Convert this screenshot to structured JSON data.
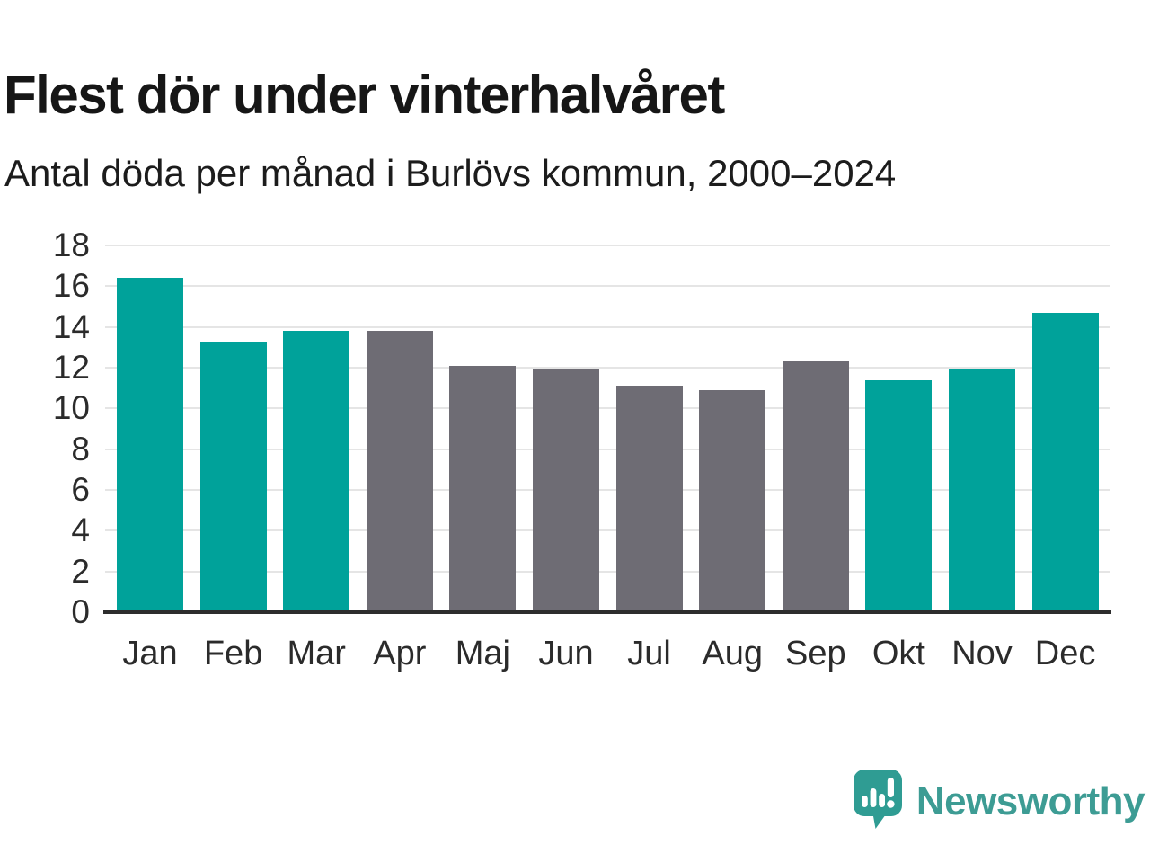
{
  "chart_data": {
    "type": "bar",
    "title": "Flest dör under vinterhalvåret",
    "subtitle": "Antal döda per månad i Burlövs kommun, 2000–2024",
    "categories": [
      "Jan",
      "Feb",
      "Mar",
      "Apr",
      "Maj",
      "Jun",
      "Jul",
      "Aug",
      "Sep",
      "Okt",
      "Nov",
      "Dec"
    ],
    "values": [
      16.4,
      13.3,
      13.8,
      13.8,
      12.1,
      11.9,
      11.1,
      10.9,
      12.3,
      11.4,
      11.9,
      14.7
    ],
    "highlighted": [
      true,
      true,
      true,
      false,
      false,
      false,
      false,
      false,
      false,
      true,
      true,
      true
    ],
    "xlabel": "",
    "ylabel": "",
    "ylim": [
      0,
      18
    ],
    "yticks": [
      0,
      2,
      4,
      6,
      8,
      10,
      12,
      14,
      16,
      18
    ],
    "grid": "horizontal",
    "legend": "none",
    "colors": {
      "highlight": "#00A29A",
      "muted": "#6E6C74",
      "gridline": "#E5E5E5",
      "axis": "#2d2d2d",
      "text": "#2b2b2b"
    }
  },
  "brand": {
    "name": "Newsworthy",
    "color": "#3D9C94",
    "logo_icon": "speech-bubble-bar-chart-exclamation"
  }
}
